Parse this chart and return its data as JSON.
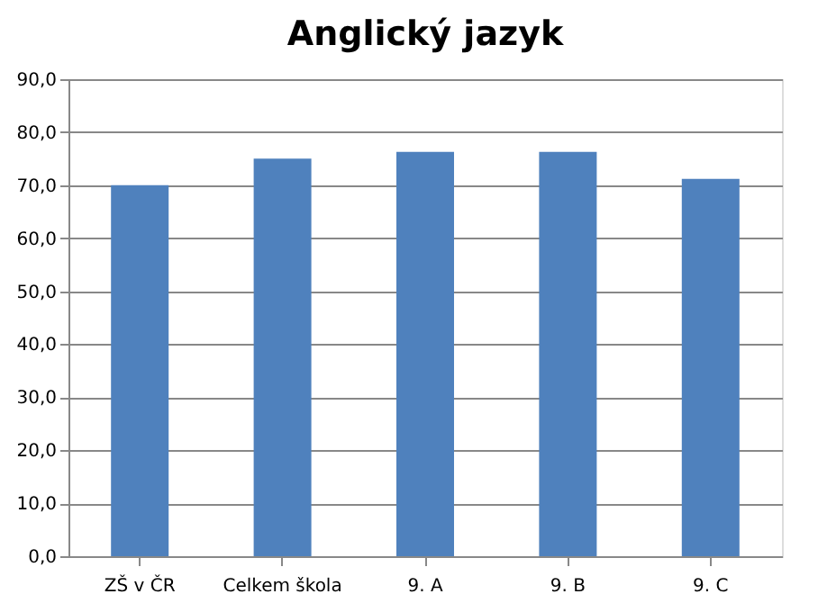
{
  "chart_data": {
    "type": "bar",
    "title": "Anglický jazyk",
    "categories": [
      "ZŠ v ČR",
      "Celkem škola",
      "9. A",
      "9. B",
      "9. C"
    ],
    "values": [
      70,
      75,
      76.3,
      76.3,
      71.2
    ],
    "color": "#4f81bd",
    "ylim": [
      0,
      90
    ],
    "yticks": [
      {
        "value": 0,
        "label": "0,0"
      },
      {
        "value": 10,
        "label": "10,0"
      },
      {
        "value": 20,
        "label": "20,0"
      },
      {
        "value": 30,
        "label": "30,0"
      },
      {
        "value": 40,
        "label": "40,0"
      },
      {
        "value": 50,
        "label": "50,0"
      },
      {
        "value": 60,
        "label": "60,0"
      },
      {
        "value": 70,
        "label": "70,0"
      },
      {
        "value": 80,
        "label": "80,0"
      },
      {
        "value": 90,
        "label": "90,0"
      }
    ],
    "grid": "y"
  }
}
